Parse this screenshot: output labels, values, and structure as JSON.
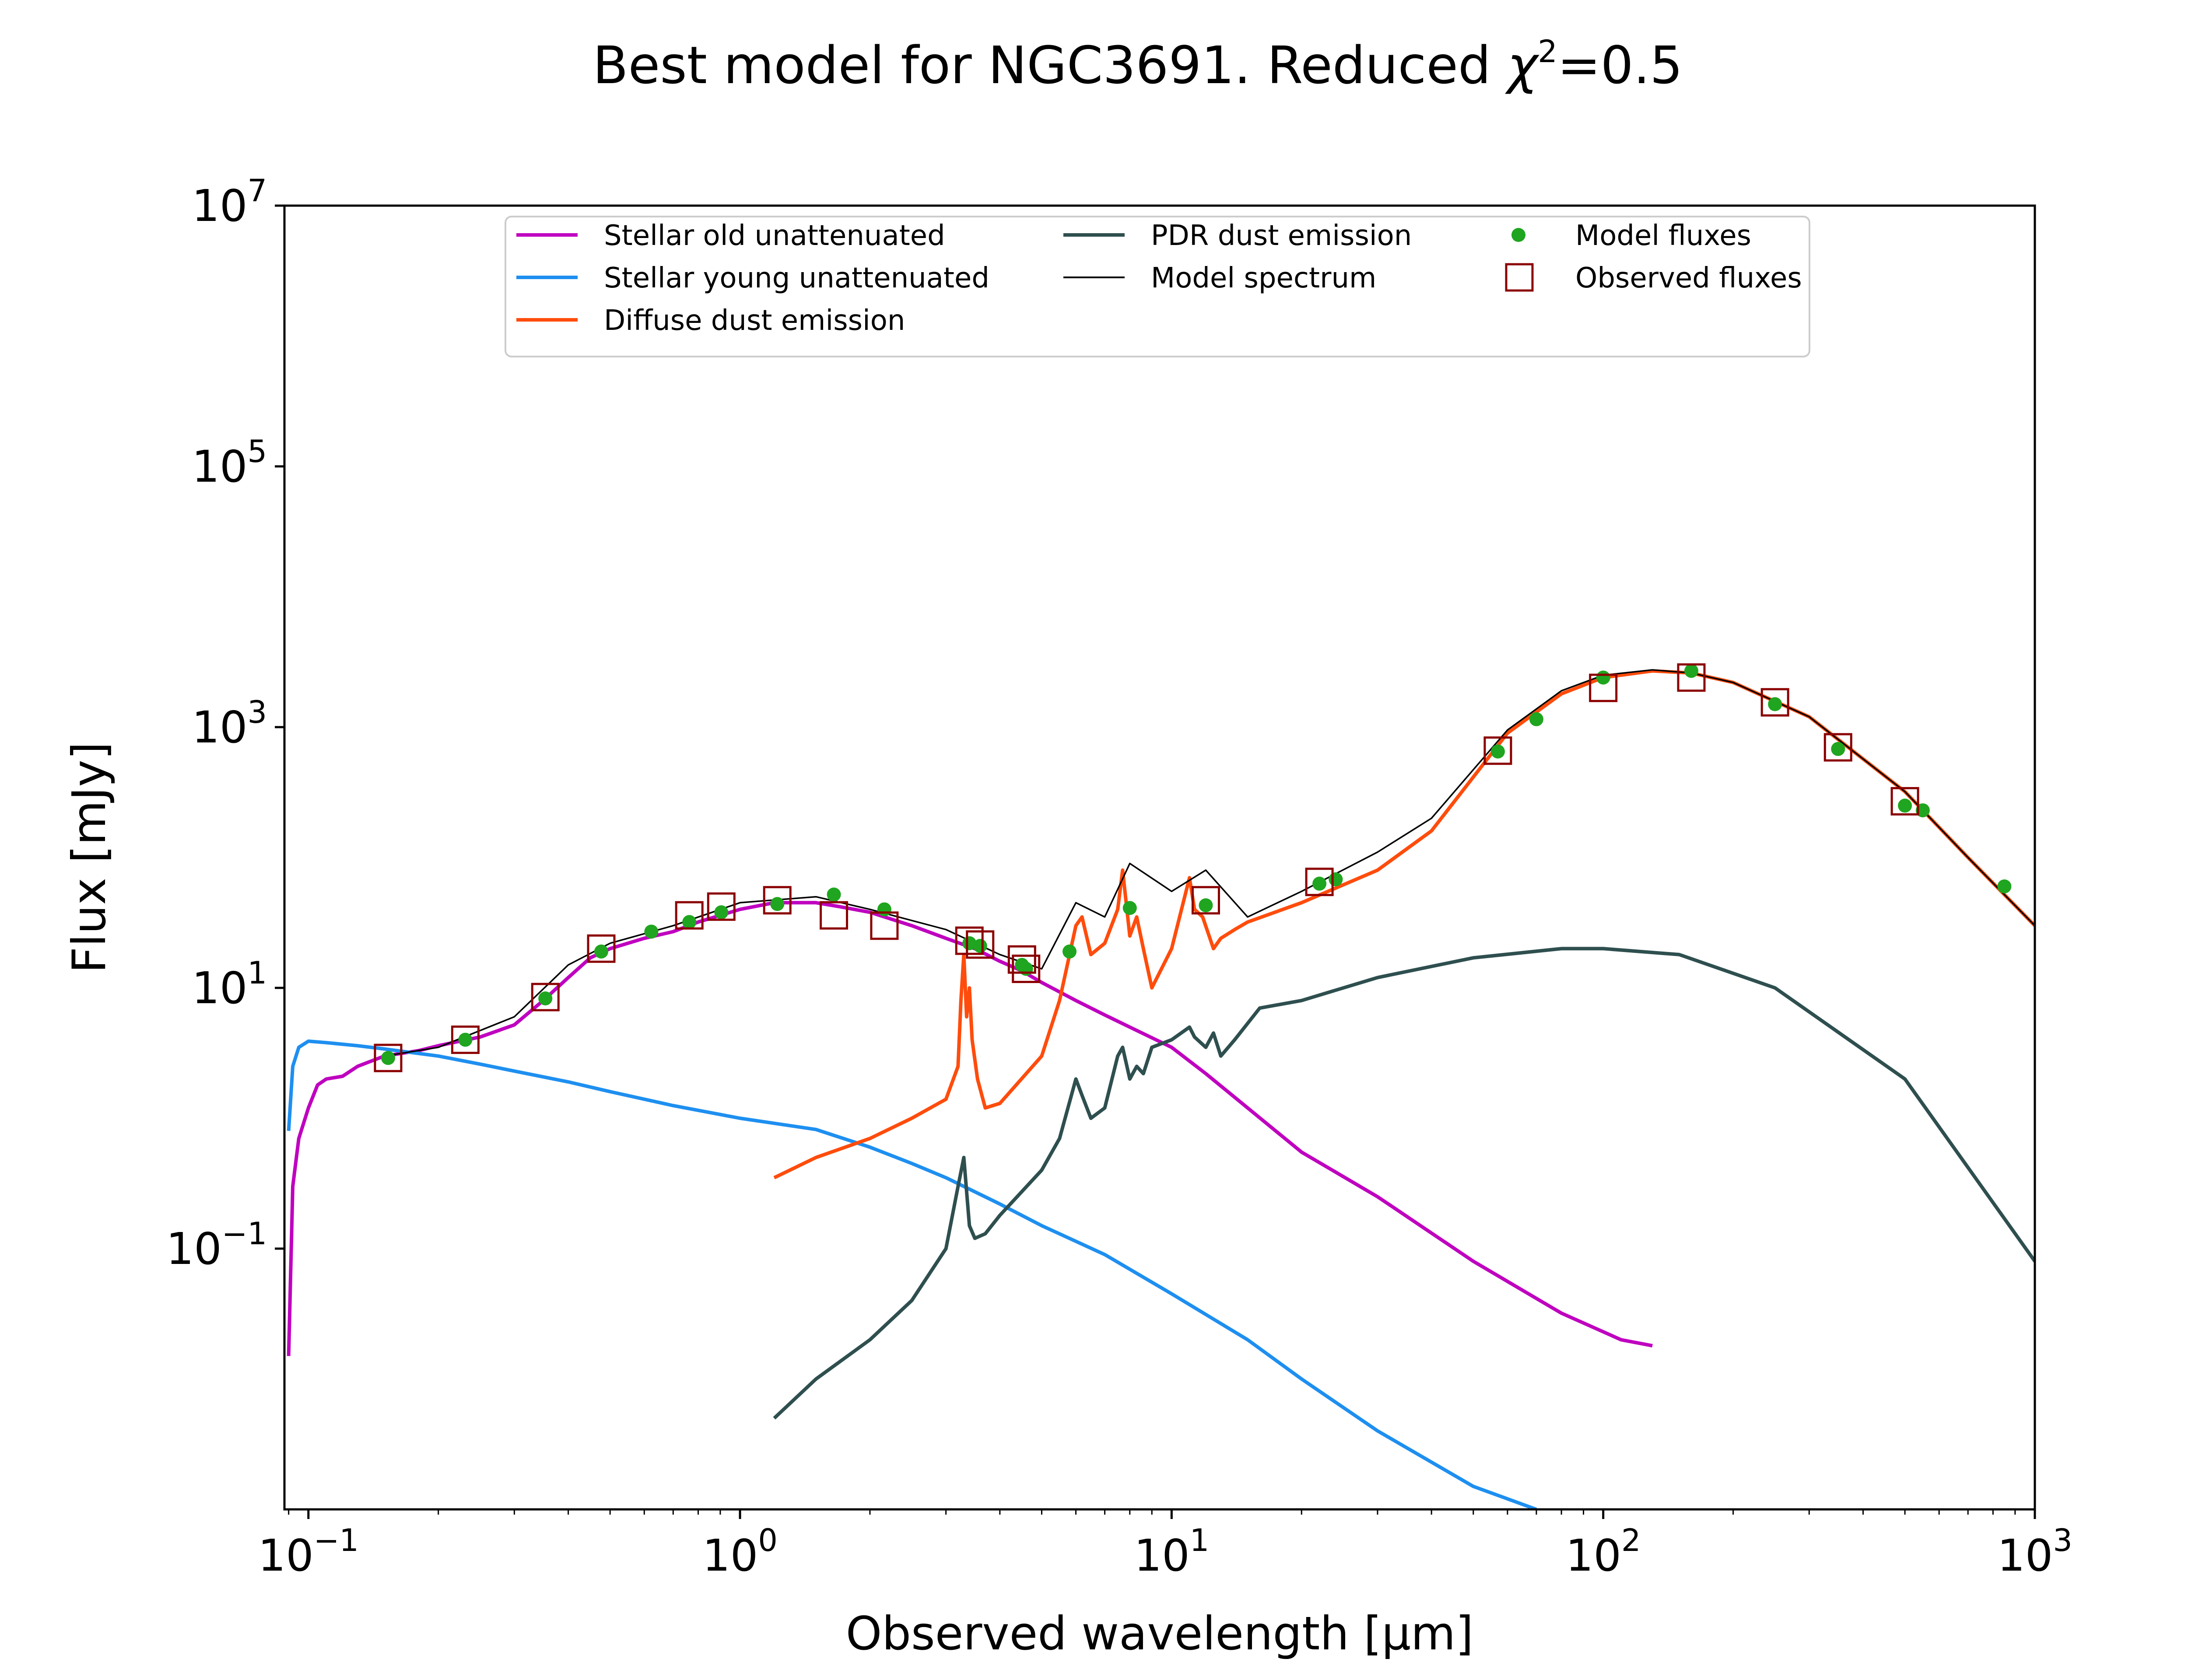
{
  "chart_data": {
    "type": "line",
    "title": {
      "text": "Best model for NGC3691. Reduced ",
      "chi": "χ",
      "chi_sup": "2",
      "value": "=0.5"
    },
    "xlabel": "Observed wavelength [μm]",
    "ylabel": "Flux [mJy]",
    "x_scale": "log",
    "y_scale": "log",
    "xlim": [
      0.088,
      1000
    ],
    "ylim": [
      0.001,
      10000000
    ],
    "legend_placement": "upper-center",
    "x_ticks": [
      {
        "value": 0.1,
        "base": "10",
        "exp": "−1"
      },
      {
        "value": 1,
        "base": "10",
        "exp": "0"
      },
      {
        "value": 10,
        "base": "10",
        "exp": "1"
      },
      {
        "value": 100,
        "base": "10",
        "exp": "2"
      },
      {
        "value": 1000,
        "base": "10",
        "exp": "3"
      }
    ],
    "y_ticks": [
      {
        "value": 0.1,
        "base": "10",
        "exp": "−1"
      },
      {
        "value": 10,
        "base": "10",
        "exp": "1"
      },
      {
        "value": 1000,
        "base": "10",
        "exp": "3"
      },
      {
        "value": 100000,
        "base": "10",
        "exp": "5"
      },
      {
        "value": 10000000,
        "base": "10",
        "exp": "7"
      }
    ],
    "series": [
      {
        "name": "Stellar old unattenuated",
        "color": "#bf00bf",
        "kind": "line",
        "x": [
          0.09,
          0.092,
          0.095,
          0.1,
          0.105,
          0.11,
          0.12,
          0.13,
          0.15,
          0.18,
          0.2,
          0.25,
          0.3,
          0.35,
          0.4,
          0.45,
          0.5,
          0.6,
          0.7,
          0.8,
          0.9,
          1.0,
          1.2,
          1.5,
          1.7,
          2.0,
          2.5,
          3.0,
          3.5,
          4.0,
          4.5,
          5.0,
          6.0,
          7.0,
          8.0,
          10.0,
          12.0,
          15.0,
          20.0,
          30.0,
          50.0,
          80.0,
          110.0,
          130.0
        ],
        "y": [
          0.015,
          0.3,
          0.7,
          1.2,
          1.8,
          2.0,
          2.1,
          2.5,
          3.0,
          3.3,
          3.6,
          4.2,
          5.2,
          8.0,
          12.0,
          17.0,
          20.0,
          24.0,
          27.0,
          32.0,
          36.0,
          40.0,
          45.0,
          45.0,
          42.0,
          38.0,
          30.0,
          24.0,
          20.0,
          16.0,
          13.5,
          11.0,
          8.0,
          6.2,
          5.0,
          3.5,
          2.2,
          1.2,
          0.55,
          0.25,
          0.08,
          0.032,
          0.02,
          0.018
        ]
      },
      {
        "name": "Stellar young unattenuated",
        "color": "#1e8ff0",
        "kind": "line",
        "x": [
          0.09,
          0.092,
          0.095,
          0.1,
          0.11,
          0.13,
          0.15,
          0.2,
          0.25,
          0.3,
          0.4,
          0.5,
          0.7,
          1.0,
          1.5,
          2.0,
          2.5,
          3.0,
          4.0,
          5.0,
          7.0,
          10.0,
          15.0,
          20.0,
          30.0,
          50.0,
          70.0
        ],
        "y": [
          0.8,
          2.5,
          3.5,
          3.9,
          3.8,
          3.6,
          3.4,
          3.0,
          2.6,
          2.3,
          1.9,
          1.6,
          1.25,
          1.0,
          0.82,
          0.6,
          0.45,
          0.35,
          0.22,
          0.15,
          0.09,
          0.045,
          0.02,
          0.01,
          0.004,
          0.0015,
          0.001
        ]
      },
      {
        "name": "Diffuse dust emission",
        "color": "#ff4c0c",
        "kind": "line",
        "x": [
          1.2,
          1.5,
          2.0,
          2.5,
          3.0,
          3.2,
          3.25,
          3.3,
          3.35,
          3.4,
          3.45,
          3.55,
          3.7,
          4.0,
          5.0,
          5.5,
          6.0,
          6.2,
          6.5,
          7.0,
          7.5,
          7.7,
          8.0,
          8.3,
          8.6,
          9.0,
          10.0,
          11.0,
          11.3,
          11.8,
          12.5,
          13.0,
          14.0,
          15.0,
          20.0,
          30.0,
          40.0,
          60.0,
          80.0,
          100.0,
          130.0,
          160.0,
          200.0,
          300.0,
          500.0,
          700.0,
          1000.0
        ],
        "y": [
          0.35,
          0.5,
          0.7,
          1.0,
          1.4,
          2.5,
          8.0,
          18.0,
          6.0,
          10.0,
          4.0,
          2.0,
          1.2,
          1.3,
          3.0,
          8.0,
          30.0,
          35.0,
          18.0,
          22.0,
          40.0,
          80.0,
          25.0,
          35.0,
          20.0,
          10.0,
          20.0,
          70.0,
          40.0,
          35.0,
          20.0,
          24.0,
          28.0,
          32.0,
          45.0,
          80.0,
          160.0,
          900.0,
          1800.0,
          2400.0,
          2700.0,
          2600.0,
          2200.0,
          1200.0,
          320.0,
          100.0,
          30.0
        ]
      },
      {
        "name": "PDR dust emission",
        "color": "#2f4f4f",
        "kind": "line",
        "x": [
          1.2,
          1.5,
          2.0,
          2.5,
          3.0,
          3.2,
          3.3,
          3.4,
          3.5,
          3.7,
          4.0,
          5.0,
          5.5,
          6.0,
          6.2,
          6.5,
          7.0,
          7.5,
          7.7,
          8.0,
          8.3,
          8.6,
          9.0,
          10.0,
          11.0,
          11.3,
          12.0,
          12.5,
          13.0,
          14.0,
          16.0,
          20.0,
          30.0,
          50.0,
          80.0,
          100.0,
          150.0,
          250.0,
          500.0,
          1000.0
        ],
        "y": [
          0.005,
          0.01,
          0.02,
          0.04,
          0.1,
          0.3,
          0.5,
          0.15,
          0.12,
          0.13,
          0.18,
          0.4,
          0.7,
          2.0,
          1.5,
          1.0,
          1.2,
          3.0,
          3.5,
          2.0,
          2.5,
          2.2,
          3.5,
          4.0,
          5.0,
          4.2,
          3.5,
          4.5,
          3.0,
          4.0,
          7.0,
          8.0,
          12.0,
          17.0,
          20.0,
          20.0,
          18.0,
          10.0,
          2.0,
          0.08
        ]
      },
      {
        "name": "Model spectrum",
        "color": "#000000",
        "kind": "line",
        "x": [
          0.15,
          0.2,
          0.3,
          0.4,
          0.5,
          0.7,
          1.0,
          1.5,
          2.0,
          3.0,
          4.0,
          5.0,
          6.0,
          7.0,
          8.0,
          10.0,
          12.0,
          15.0,
          20.0,
          30.0,
          40.0,
          60.0,
          80.0,
          100.0,
          130.0,
          160.0,
          200.0,
          300.0,
          500.0,
          700.0,
          1000.0
        ],
        "y": [
          3.0,
          3.5,
          6.0,
          15.0,
          22.0,
          30.0,
          45.0,
          50.0,
          40.0,
          28.0,
          18.0,
          14.0,
          45.0,
          35.0,
          90.0,
          55.0,
          80.0,
          35.0,
          55.0,
          110.0,
          200.0,
          950.0,
          1900.0,
          2500.0,
          2750.0,
          2600.0,
          2200.0,
          1200.0,
          320.0,
          100.0,
          30.0
        ]
      },
      {
        "name": "Model fluxes",
        "color": "#1fa51f",
        "kind": "points",
        "x": [
          0.153,
          0.231,
          0.354,
          0.477,
          0.623,
          0.763,
          0.905,
          1.22,
          1.65,
          2.16,
          3.4,
          3.6,
          4.5,
          4.6,
          5.8,
          8.0,
          12.0,
          22.0,
          24.0,
          57.0,
          70.0,
          100.0,
          160.0,
          250.0,
          350.0,
          500.0,
          550.0,
          850.0
        ],
        "y": [
          2.9,
          4.0,
          8.3,
          19.0,
          27.0,
          32.0,
          38.0,
          44.0,
          52.0,
          40.0,
          22.0,
          21.0,
          15.0,
          14.0,
          19.0,
          41.0,
          43.0,
          63.0,
          68.0,
          650.0,
          1150.0,
          2400.0,
          2700.0,
          1500.0,
          680.0,
          250.0,
          230.0,
          60.0
        ]
      },
      {
        "name": "Observed fluxes",
        "color": "#8b0000",
        "kind": "squares",
        "x": [
          0.153,
          0.231,
          0.354,
          0.477,
          0.763,
          0.905,
          1.22,
          1.65,
          2.16,
          3.4,
          3.6,
          4.5,
          4.6,
          12.0,
          22.0,
          57.0,
          100.0,
          160.0,
          250.0,
          350.0,
          500.0
        ],
        "y": [
          2.9,
          4.0,
          8.5,
          20.0,
          36.0,
          42.0,
          47.0,
          36.0,
          30.0,
          23.0,
          21.5,
          16.5,
          14.0,
          47.0,
          65.0,
          660.0,
          2000.0,
          2400.0,
          1550.0,
          700.0,
          270.0
        ]
      }
    ]
  }
}
